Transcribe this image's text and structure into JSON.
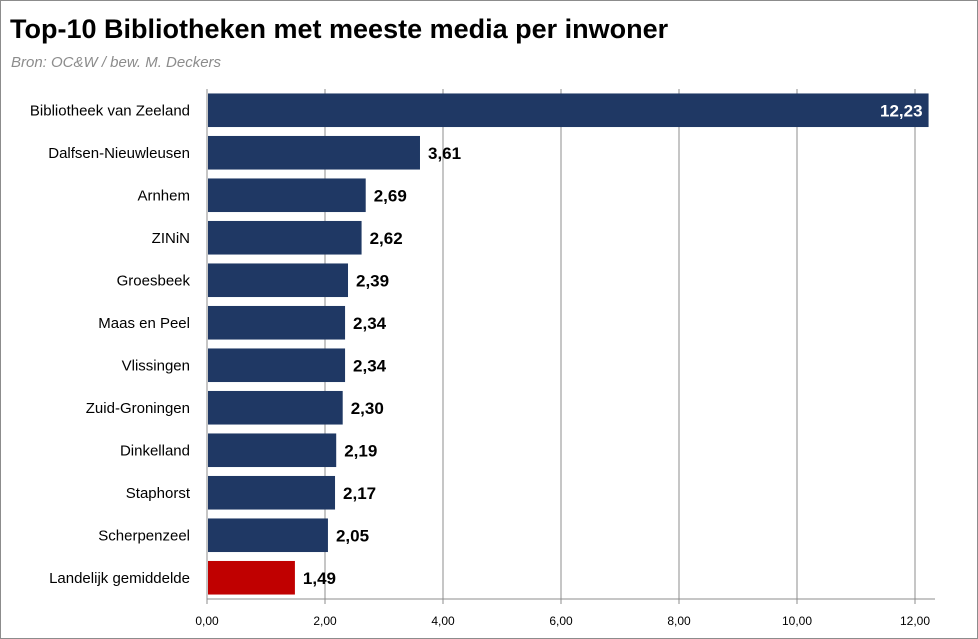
{
  "header": {
    "title": "Top-10 Bibliotheken met meeste media per inwoner",
    "subtitle": "Bron: OC&W / bew. M. Deckers"
  },
  "colors": {
    "bar": "#1f3864",
    "highlight": "#c00000",
    "grid": "#8c8c8c"
  },
  "chart_data": {
    "type": "bar",
    "orientation": "horizontal",
    "title": "Top-10 Bibliotheken met meeste media per inwoner",
    "xlabel": "",
    "ylabel": "",
    "xlim": [
      0,
      12
    ],
    "grid": true,
    "categories": [
      "Bibliotheek van Zeeland",
      "Dalfsen-Nieuwleusen",
      "Arnhem",
      "ZINiN",
      "Groesbeek",
      "Maas en Peel",
      "Vlissingen",
      "Zuid-Groningen",
      "Dinkelland",
      "Staphorst",
      "Scherpenzeel",
      "Landelijk gemiddelde"
    ],
    "values": [
      12.23,
      3.61,
      2.69,
      2.62,
      2.39,
      2.34,
      2.34,
      2.3,
      2.19,
      2.17,
      2.05,
      1.49
    ],
    "value_labels": [
      "12,23",
      "3,61",
      "2,69",
      "2,62",
      "2,39",
      "2,34",
      "2,34",
      "2,30",
      "2,19",
      "2,17",
      "2,05",
      "1,49"
    ],
    "highlight_index": 11,
    "ticks": [
      0,
      2,
      4,
      6,
      8,
      10,
      12
    ],
    "tick_labels": [
      "0,00",
      "2,00",
      "4,00",
      "6,00",
      "8,00",
      "10,00",
      "12,00"
    ]
  }
}
